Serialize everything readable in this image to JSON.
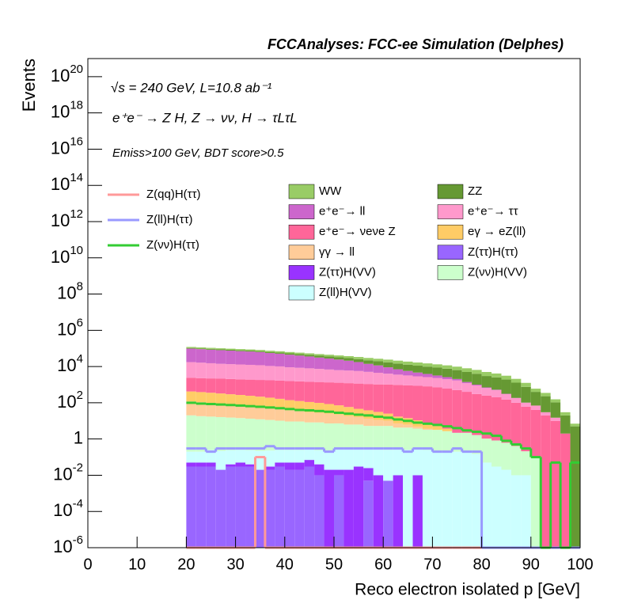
{
  "chart_data": {
    "type": "stacked_histogram",
    "title": "FCCAnalyses: FCC-ee Simulation (Delphes)",
    "annotations": [
      "√s = 240 GeV, L=10.8 ab⁻¹",
      "e⁺e⁻ → Z H, Z → νν, H → τLτL",
      "Emiss>100 GeV, BDT score>0.5"
    ],
    "x_label": "Reco electron isolated p [GeV]",
    "y_label": "Events",
    "log_y": true,
    "xlim": [
      0,
      100
    ],
    "xticks": [
      0,
      10,
      20,
      30,
      40,
      50,
      60,
      70,
      80,
      90,
      100
    ],
    "ylim": [
      1e-06,
      1e+21
    ],
    "yticks": [
      {
        "value": 1e-06,
        "label": "10^-6"
      },
      {
        "value": 0.0001,
        "label": "10^-4"
      },
      {
        "value": 0.01,
        "label": "10^-2"
      },
      1,
      {
        "value": 100,
        "label": "10^2"
      },
      {
        "value": 10000.0,
        "label": "10^4"
      },
      {
        "value": 1000000.0,
        "label": "10^6"
      },
      {
        "value": 100000000.0,
        "label": "10^8"
      },
      {
        "value": 10000000000.0,
        "label": "10^10"
      },
      {
        "value": 1000000000000.0,
        "label": "10^12"
      },
      {
        "value": 100000000000000.0,
        "label": "10^14"
      },
      {
        "value": 1e+16,
        "label": "10^16"
      },
      {
        "value": 1e+18,
        "label": "10^18"
      },
      {
        "value": 1e+20,
        "label": "10^20"
      }
    ],
    "bins": [
      20,
      22,
      24,
      26,
      28,
      30,
      32,
      34,
      36,
      38,
      40,
      42,
      44,
      46,
      48,
      50,
      52,
      54,
      56,
      58,
      60,
      62,
      64,
      66,
      68,
      70,
      72,
      74,
      76,
      78,
      80,
      82,
      84,
      86,
      88,
      90,
      92,
      94,
      96,
      98,
      100
    ],
    "series": [
      {
        "name": "Z(ττ)H(ττ)",
        "color": "#9966ff",
        "values": [
          0.03,
          0.03,
          0.03,
          0.02,
          0.03,
          0.03,
          0.03,
          0.02,
          0.02,
          0.03,
          0.02,
          0.02,
          0.03,
          0.01,
          0,
          0.01,
          0,
          0,
          0.005,
          0,
          0.005,
          0,
          0,
          0,
          0,
          0,
          0,
          0,
          0,
          0,
          0,
          0,
          0,
          0,
          0,
          0,
          0,
          0,
          0,
          0
        ]
      },
      {
        "name": "Z(ττ)H(VV)",
        "color": "#9933ff",
        "values": [
          0.02,
          0.02,
          0.02,
          0,
          0.01,
          0.02,
          0.01,
          0,
          0.01,
          0.02,
          0.03,
          0.03,
          0.04,
          0.03,
          0.02,
          0.01,
          0.02,
          0.03,
          0.02,
          0.01,
          0,
          0.01,
          0,
          0.01,
          0,
          0,
          0,
          0,
          0,
          0,
          0,
          0,
          0,
          0,
          0,
          0,
          0,
          0,
          0,
          0
        ]
      },
      {
        "name": "Z(ll)H(VV)",
        "color": "#ccffff",
        "values": [
          0.15,
          0.15,
          0.2,
          0.2,
          0.2,
          0.2,
          0.2,
          0.2,
          0.2,
          0.2,
          0.2,
          0.2,
          0.2,
          0.2,
          0.2,
          0.25,
          0.25,
          0.25,
          0.25,
          0.25,
          0.25,
          0.25,
          0.25,
          0.25,
          0.25,
          0.2,
          0.2,
          0.2,
          0.2,
          0.15,
          0.05,
          0.03,
          0.02,
          0.01,
          0.01,
          0,
          0,
          0,
          0,
          0
        ]
      },
      {
        "name": "Z(νν)H(VV)",
        "color": "#ccffcc",
        "values": [
          20,
          18,
          17,
          16,
          15,
          14,
          13,
          12,
          11,
          10,
          9,
          9,
          8,
          8,
          7,
          7,
          6,
          6,
          5,
          5,
          5,
          4,
          4,
          3.5,
          3,
          3,
          2.5,
          2,
          2,
          1.5,
          1,
          0.8,
          0.6,
          0.4,
          0.2,
          0.1,
          0,
          0,
          0,
          0
        ]
      },
      {
        "name": "γγ → ll",
        "color": "#ffcc99",
        "values": [
          100,
          90,
          80,
          70,
          60,
          55,
          50,
          45,
          40,
          35,
          30,
          25,
          22,
          20,
          18,
          15,
          12,
          10,
          8,
          6,
          5,
          3,
          2,
          1,
          0.5,
          0,
          0,
          0,
          0,
          0,
          0,
          0,
          0,
          0,
          0,
          0,
          0,
          0,
          0,
          0
        ]
      },
      {
        "name": "eγ → eZ(ll)",
        "color": "#ffcc66",
        "values": [
          300,
          280,
          260,
          240,
          220,
          200,
          180,
          160,
          140,
          120,
          100,
          90,
          80,
          70,
          60,
          50,
          40,
          30,
          25,
          20,
          15,
          10,
          8,
          6,
          4,
          2,
          1,
          0,
          0,
          0,
          0,
          0,
          0,
          0,
          0,
          0,
          0,
          0,
          0,
          0
        ]
      },
      {
        "name": "e⁺e⁻→ νeνe Z",
        "color": "#ff6699",
        "values": [
          2000,
          1900,
          1850,
          1800,
          1750,
          1700,
          1650,
          1600,
          1550,
          1500,
          1450,
          1400,
          1350,
          1300,
          1250,
          1200,
          1150,
          1100,
          1050,
          1000,
          1000,
          950,
          900,
          850,
          800,
          700,
          600,
          500,
          400,
          300,
          250,
          200,
          150,
          100,
          60,
          40,
          20,
          10,
          2,
          0
        ]
      },
      {
        "name": "e⁺e⁻→ ττ",
        "color": "#ff99cc",
        "values": [
          15000,
          14000,
          13000,
          12000,
          11500,
          11000,
          10500,
          10000,
          9000,
          8500,
          7500,
          7000,
          6500,
          6000,
          5500,
          5000,
          4800,
          4500,
          4000,
          3500,
          3000,
          2600,
          2300,
          2000,
          1800,
          1600,
          1400,
          1200,
          800,
          600,
          400,
          300,
          150,
          80,
          40,
          30,
          10,
          5,
          0,
          0
        ]
      },
      {
        "name": "e⁺e⁻→ ll",
        "color": "#cc66cc",
        "values": [
          80000,
          75000,
          70000,
          66000,
          62000,
          58000,
          55000,
          51000,
          45000,
          41000,
          36000,
          32000,
          28000,
          24000,
          21000,
          18000,
          15000,
          12000,
          9000,
          7000,
          5000,
          3500,
          2500,
          1800,
          1300,
          900,
          600,
          350,
          200,
          100,
          50,
          25,
          12,
          5,
          2,
          0,
          0,
          0,
          0,
          0
        ]
      },
      {
        "name": "ZZ",
        "color": "#669933",
        "values": [
          8000,
          8000,
          8000,
          8000,
          8000,
          8000,
          8000,
          8000,
          8000,
          8000,
          8000,
          8000,
          8000,
          8000,
          8000,
          8000,
          8000,
          8000,
          8000,
          8000,
          8000,
          7500,
          7000,
          6500,
          6000,
          5500,
          5000,
          4300,
          3600,
          3000,
          2300,
          2000,
          1600,
          1100,
          650,
          330,
          200,
          90,
          18,
          5
        ]
      },
      {
        "name": "WW",
        "color": "#99cc66",
        "values": [
          15000,
          14500,
          14000,
          13500,
          13000,
          12500,
          12000,
          11500,
          11000,
          10500,
          10000,
          9800,
          9500,
          9200,
          9000,
          8700,
          8400,
          8000,
          7700,
          7300,
          7000,
          6500,
          6000,
          5500,
          5000,
          4500,
          4000,
          3500,
          3000,
          2500,
          2000,
          1600,
          1200,
          800,
          500,
          200,
          120,
          50,
          10,
          2
        ]
      }
    ],
    "lines": [
      {
        "name": "Z(qq)H(ττ)",
        "color": "#ff9999",
        "values": [
          0,
          0,
          0,
          0,
          0,
          0,
          0,
          0.1,
          0,
          0,
          0,
          0,
          0,
          0,
          0,
          0,
          0,
          0,
          0,
          0,
          0,
          0,
          0,
          0,
          0,
          0,
          0,
          0,
          0,
          0,
          0,
          0,
          0,
          0,
          0,
          0,
          0,
          0,
          0,
          0
        ]
      },
      {
        "name": "Z(ll)H(ττ)",
        "color": "#9999ff",
        "values": [
          0.3,
          0.3,
          0.2,
          0.3,
          0.3,
          0.3,
          0.3,
          0.3,
          0.4,
          0.3,
          0.3,
          0.3,
          0.3,
          0.3,
          0.2,
          0.3,
          0.3,
          0.3,
          0.3,
          0.3,
          0.3,
          0.3,
          0.2,
          0.3,
          0.3,
          0.2,
          0.2,
          0.3,
          0.2,
          0.2,
          0,
          0,
          0,
          0,
          0,
          0,
          0,
          0,
          0,
          0
        ]
      },
      {
        "name": "Z(νν)H(ττ)",
        "color": "#33cc33",
        "values": [
          100,
          90,
          85,
          80,
          75,
          70,
          65,
          60,
          55,
          50,
          45,
          40,
          38,
          35,
          32,
          28,
          25,
          22,
          20,
          17,
          15,
          12,
          10,
          8,
          7,
          6,
          5,
          4,
          3,
          2.5,
          2,
          1.5,
          0.8,
          0.5,
          0.3,
          0.1,
          0,
          0.05,
          0,
          0.05
        ]
      }
    ]
  }
}
